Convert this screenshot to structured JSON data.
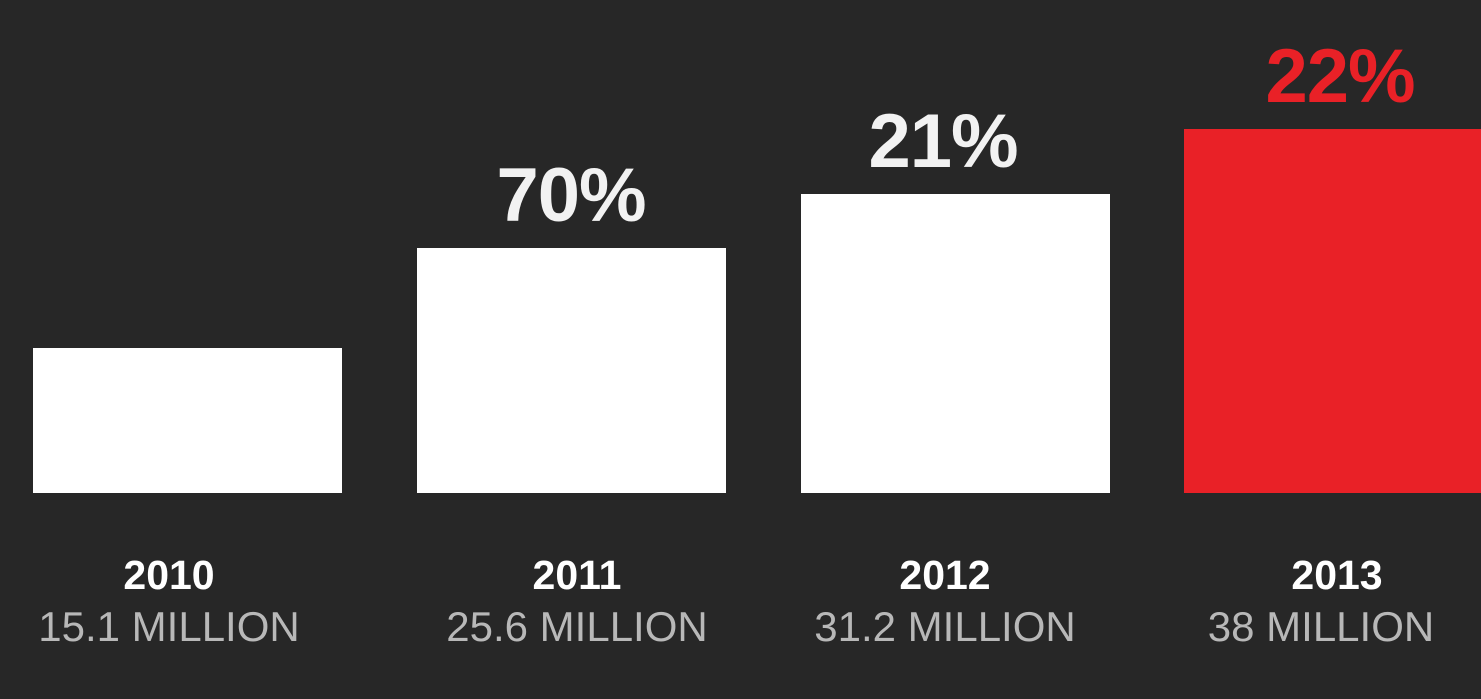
{
  "chart_data": {
    "type": "bar",
    "categories": [
      "2010",
      "2011",
      "2012",
      "2013"
    ],
    "values": [
      15.1,
      25.6,
      31.2,
      38
    ],
    "value_labels": [
      "15.1 MILLION",
      "25.6 MILLION",
      "31.2 MILLION",
      "38 MILLION"
    ],
    "growth_labels": [
      "",
      "70%",
      "21%",
      "22%"
    ],
    "title": "",
    "xlabel": "",
    "ylabel": "",
    "ylim": [
      0,
      38
    ],
    "grid": false,
    "colors": {
      "background": "#272727",
      "bar_default": "#ffffff",
      "bar_highlight": "#e92127",
      "growth_default": "#f2f2f2",
      "growth_highlight": "#e92127",
      "year_text": "#ffffff",
      "value_text": "#b8b8b8"
    },
    "highlight_index": 3
  }
}
